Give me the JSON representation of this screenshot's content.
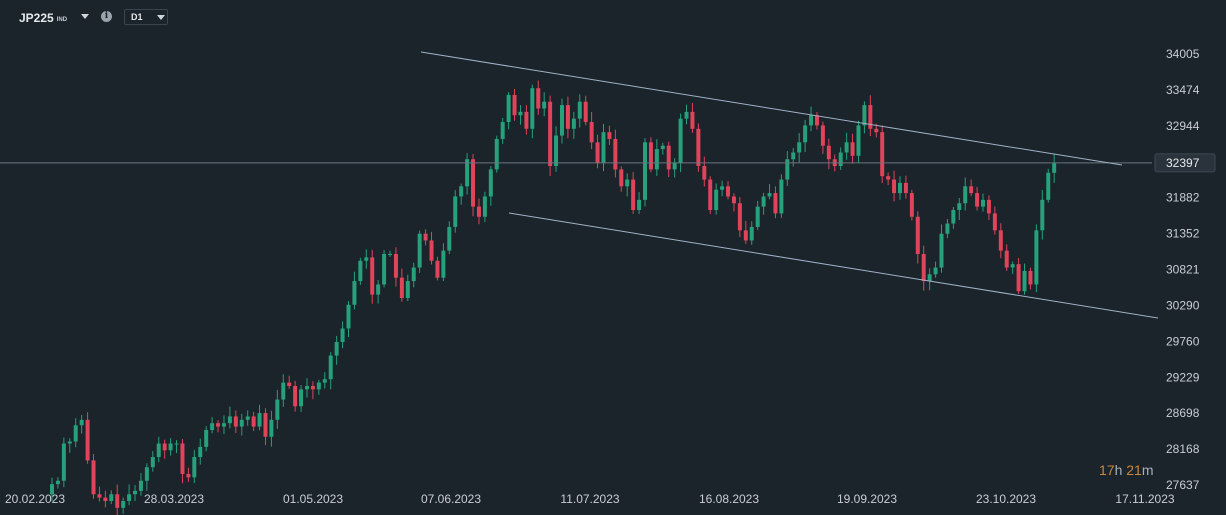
{
  "toolbar": {
    "symbol": "JP225",
    "symbol_suffix": "IND",
    "info_icon": "info-icon",
    "timeframe": "D1"
  },
  "countdown": {
    "hours": "17",
    "hours_unit": "h",
    "minutes": "21",
    "minutes_unit": "m"
  },
  "colors": {
    "background": "#1b232b",
    "up": "#26a17b",
    "down": "#e0445a",
    "trendline": "#9fb3c8",
    "price_line": "#6b7680",
    "label_bg": "#2a333c"
  },
  "chart_data": {
    "type": "candlestick",
    "title": "",
    "xlabel": "",
    "ylabel": "",
    "y_ticks": [
      34005,
      33474,
      32944,
      32397,
      31882,
      31352,
      30821,
      30290,
      29760,
      29229,
      28698,
      28168,
      27637
    ],
    "x_ticks": [
      "20.02.2023",
      "28.03.2023",
      "01.05.2023",
      "07.06.2023",
      "11.07.2023",
      "16.08.2023",
      "19.09.2023",
      "23.10.2023",
      "17.11.2023"
    ],
    "ylim": [
      27637,
      34005
    ],
    "current_price": 32397,
    "grid": false,
    "candles_close": [
      27650,
      27700,
      28250,
      28280,
      28520,
      28600,
      28000,
      27500,
      27450,
      27400,
      27500,
      27300,
      27400,
      27500,
      27550,
      27700,
      27900,
      28050,
      28250,
      28150,
      28250,
      28250,
      27800,
      27750,
      28050,
      28200,
      28450,
      28550,
      28500,
      28550,
      28650,
      28500,
      28600,
      28650,
      28500,
      28700,
      28350,
      28600,
      28900,
      29150,
      29100,
      28800,
      29050,
      29100,
      29050,
      29150,
      29200,
      29550,
      29750,
      29950,
      30300,
      30650,
      30950,
      31000,
      30450,
      30600,
      31050,
      31050,
      30700,
      30400,
      30650,
      30850,
      31350,
      31250,
      30950,
      30700,
      31100,
      31450,
      31900,
      32050,
      32450,
      31750,
      31600,
      31900,
      32300,
      32750,
      33000,
      33400,
      33100,
      33150,
      32900,
      33500,
      33200,
      33300,
      32350,
      32800,
      33250,
      32900,
      33050,
      33300,
      33000,
      32700,
      32400,
      32850,
      32750,
      32300,
      32050,
      32150,
      31700,
      31850,
      32700,
      32300,
      32600,
      32650,
      32300,
      32400,
      33050,
      33150,
      32900,
      32350,
      32150,
      31700,
      32000,
      32050,
      31900,
      31800,
      31400,
      31250,
      31450,
      31750,
      31900,
      31950,
      31650,
      32150,
      32450,
      32550,
      32700,
      32950,
      33100,
      32950,
      32650,
      32450,
      32350,
      32550,
      32700,
      32500,
      32950,
      33250,
      32900,
      32850,
      32200,
      32150,
      31950,
      32100,
      31950,
      31600,
      31050,
      30650,
      30750,
      30850,
      31350,
      31500,
      31700,
      31800,
      32050,
      31950,
      31750,
      31850,
      31650,
      31400,
      31100,
      30850,
      30900,
      30500,
      30800,
      30600,
      31400,
      31850,
      32250,
      32397
    ]
  }
}
